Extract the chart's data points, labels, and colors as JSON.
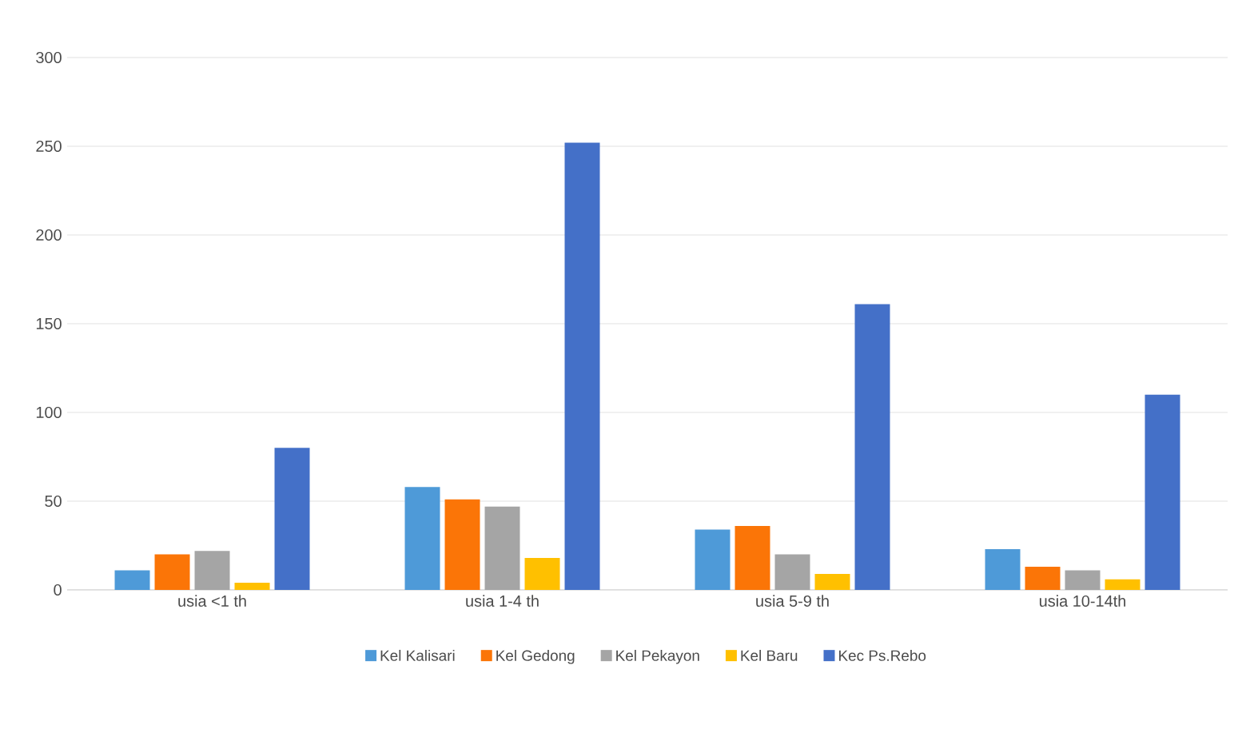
{
  "chart_data": {
    "type": "bar",
    "categories": [
      "usia <1 th",
      "usia 1-4 th",
      "usia 5-9 th",
      "usia 10-14th"
    ],
    "series": [
      {
        "name": "Kel Kalisari",
        "color": "#4e9ad8",
        "values": [
          11,
          58,
          34,
          23
        ]
      },
      {
        "name": "Kel Gedong",
        "color": "#fb7507",
        "values": [
          20,
          51,
          36,
          13
        ]
      },
      {
        "name": "Kel Pekayon",
        "color": "#a5a5a5",
        "values": [
          22,
          47,
          20,
          11
        ]
      },
      {
        "name": "Kel Baru",
        "color": "#ffc000",
        "values": [
          4,
          18,
          9,
          6
        ]
      },
      {
        "name": "Kec Ps.Rebo",
        "color": "#4470c8",
        "values": [
          80,
          252,
          161,
          110
        ]
      }
    ],
    "ylim": [
      0,
      300
    ],
    "yticks": [
      0,
      50,
      100,
      150,
      200,
      250,
      300
    ],
    "grid": "y",
    "legend": "bottom"
  }
}
